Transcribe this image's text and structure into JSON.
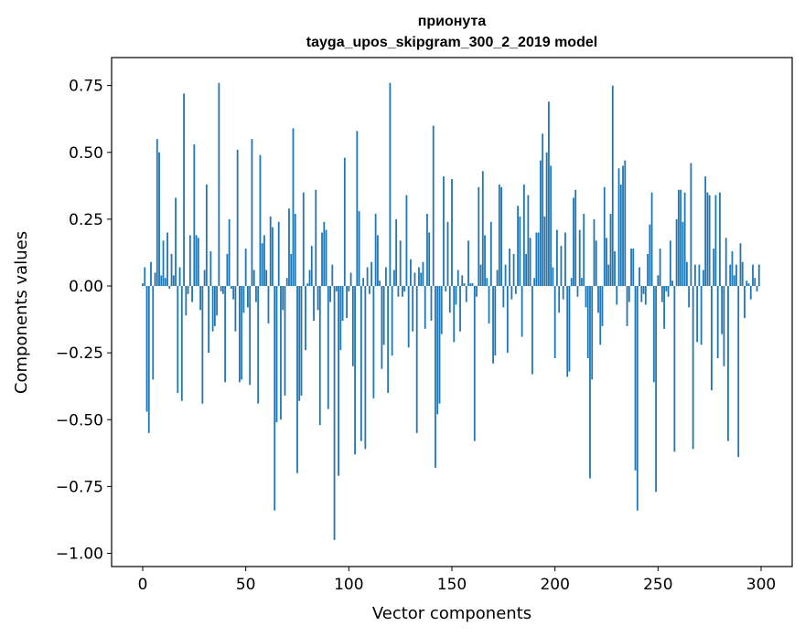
{
  "chart_data": {
    "type": "bar",
    "title": [
      "прионута",
      "tayga_upos_skipgram_300_2_2019 model"
    ],
    "xlabel": "Vector components",
    "ylabel": "Components values",
    "xlim": [
      -20,
      315
    ],
    "ylim": [
      -1.05,
      0.85
    ],
    "xticks": [
      0,
      50,
      100,
      150,
      200,
      250,
      300
    ],
    "xtick_labels": [
      "0",
      "50",
      "100",
      "150",
      "200",
      "250",
      "300"
    ],
    "yticks": [
      -1.0,
      -0.75,
      -0.5,
      -0.25,
      0.0,
      0.25,
      0.5,
      0.75
    ],
    "ytick_labels": [
      "−1.00",
      "−0.75",
      "−0.50",
      "−0.25",
      "0.00",
      "0.25",
      "0.50",
      "0.75"
    ],
    "grid": false,
    "color": "#1f77b4",
    "values": [
      0.01,
      0.07,
      -0.47,
      -0.55,
      0.09,
      -0.35,
      0.05,
      0.55,
      0.5,
      0.04,
      0.17,
      0.03,
      0.2,
      -0.01,
      0.12,
      0.04,
      0.33,
      -0.4,
      0.07,
      -0.43,
      0.72,
      -0.11,
      -0.03,
      0.19,
      -0.06,
      0.53,
      0.19,
      0.18,
      -0.09,
      -0.44,
      0.06,
      0.38,
      -0.25,
      0.13,
      -0.17,
      -0.15,
      -0.11,
      0.76,
      -0.02,
      -0.03,
      -0.36,
      0.12,
      0.25,
      -0.01,
      -0.05,
      -0.17,
      0.51,
      -0.36,
      -0.35,
      -0.1,
      0.14,
      -0.08,
      -0.37,
      0.55,
      0.06,
      -0.06,
      -0.44,
      0.49,
      0.16,
      0.19,
      0.06,
      -0.14,
      0.26,
      0.22,
      -0.84,
      -0.51,
      0.24,
      -0.5,
      -0.09,
      -0.41,
      0.03,
      0.29,
      0.12,
      0.59,
      0.27,
      -0.7,
      -0.43,
      -0.41,
      0.35,
      -0.24,
      0.01,
      0.06,
      0.15,
      -0.13,
      0.36,
      -0.09,
      -0.52,
      0.2,
      0.24,
      0.21,
      -0.46,
      -0.06,
      0.08,
      -0.95,
      -0.02,
      -0.71,
      -0.24,
      -0.13,
      0.48,
      -0.12,
      -0.02,
      0.05,
      -0.3,
      -0.63,
      0.58,
      0.28,
      -0.58,
      0.03,
      -0.61,
      0.07,
      -0.03,
      0.09,
      -0.42,
      0.27,
      0.19,
      0.02,
      -0.31,
      -0.22,
      0.07,
      -0.4,
      0.76,
      -0.26,
      0.06,
      0.25,
      -0.04,
      0.17,
      -0.04,
      -0.02,
      0.34,
      -0.23,
      0.1,
      -0.17,
      0.05,
      -0.55,
      0.07,
      0.05,
      0.09,
      -0.16,
      0.27,
      0.2,
      -0.13,
      0.6,
      -0.68,
      -0.48,
      -0.44,
      -0.18,
      0.41,
      -0.02,
      0.24,
      -0.1,
      0.4,
      -0.21,
      -0.07,
      0.06,
      -0.17,
      0.04,
      0.01,
      -0.06,
      0.17,
      0.01,
      0.01,
      -0.58,
      -0.04,
      0.37,
      0.08,
      0.43,
      0.19,
      0.03,
      -0.14,
      0.24,
      -0.29,
      -0.26,
      0.06,
      0.38,
      0.37,
      -0.08,
      0.08,
      -0.25,
      0.14,
      -0.05,
      0.12,
      -0.03,
      0.3,
      0.26,
      -0.19,
      0.38,
      0.12,
      0.34,
      0.18,
      -0.33,
      0.03,
      0.2,
      0.2,
      0.47,
      0.57,
      0.26,
      0.5,
      0.69,
      0.45,
      0.07,
      -0.27,
      0.21,
      -0.1,
      0.15,
      -0.05,
      0.2,
      -0.34,
      -0.32,
      0.03,
      0.33,
      0.36,
      -0.04,
      0.21,
      0.03,
      0.27,
      -0.08,
      -0.27,
      -0.72,
      -0.35,
      0.25,
      0.17,
      -0.1,
      -0.22,
      -0.15,
      0.37,
      0.18,
      0.08,
      0.27,
      0.75,
      0.13,
      -0.07,
      0.44,
      0.38,
      0.45,
      0.47,
      -0.15,
      -0.06,
      0.14,
      0.14,
      -0.69,
      -0.84,
      0.07,
      -0.06,
      -0.03,
      -0.07,
      0.12,
      0.23,
      0.35,
      -0.36,
      -0.77,
      0.04,
      0.14,
      -0.06,
      -0.16,
      -0.02,
      -0.04,
      0.17,
      0.02,
      -0.62,
      0.25,
      0.36,
      0.36,
      0.24,
      0.35,
      0.09,
      -0.08,
      0.46,
      -0.61,
      0.08,
      -0.21,
      0.08,
      -0.22,
      0.06,
      0.41,
      0.35,
      0.34,
      -0.39,
      0.14,
      0.34,
      -0.27,
      0.35,
      -0.18,
      -0.3,
      0.18,
      -0.58,
      0.08,
      0.13,
      0.04,
      0.08,
      -0.64,
      0.16,
      0.09,
      -0.12,
      0.02,
      0.01,
      -0.05,
      0.08,
      0.03,
      -0.02,
      0.08
    ]
  }
}
